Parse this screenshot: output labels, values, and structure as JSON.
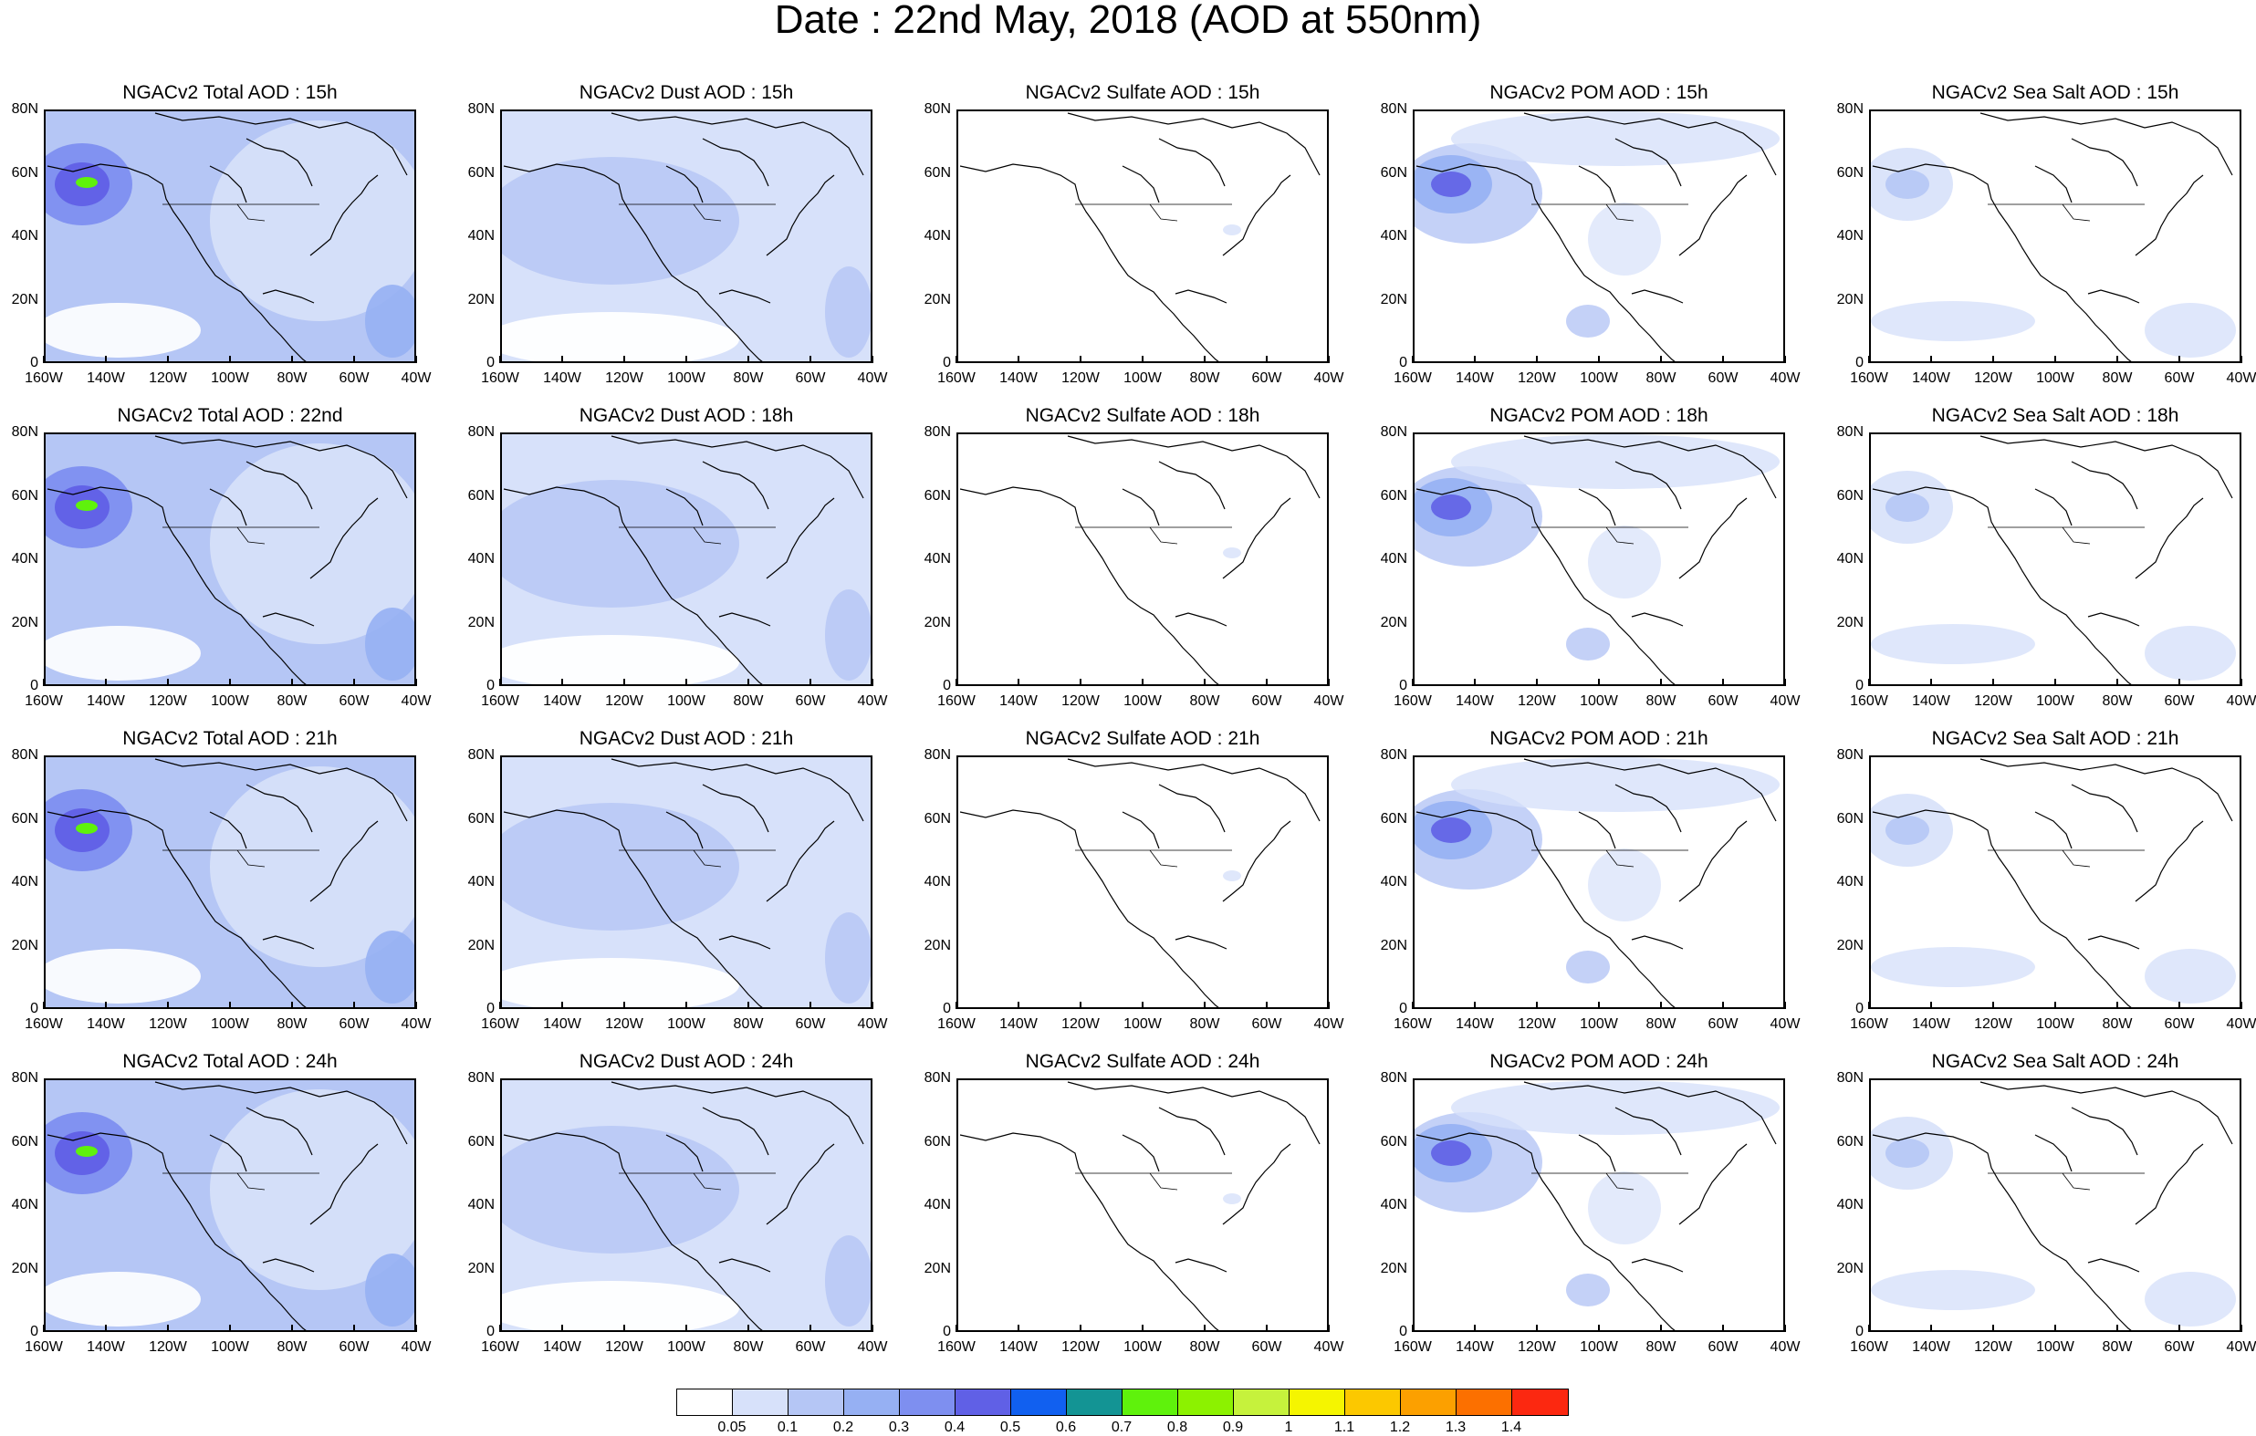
{
  "title": "Date : 22nd May, 2018 (AOD at 550nm)",
  "panel_titles": [
    [
      "NGACv2 Total AOD : 15h",
      "NGACv2 Dust AOD : 15h",
      "NGACv2 Sulfate AOD : 15h",
      "NGACv2 POM AOD : 15h",
      "NGACv2 Sea Salt AOD : 15h"
    ],
    [
      "NGACv2 Total AOD : 22nd",
      "NGACv2 Dust AOD : 18h",
      "NGACv2 Sulfate AOD : 18h",
      "NGACv2 POM AOD : 18h",
      "NGACv2 Sea Salt AOD : 18h"
    ],
    [
      "NGACv2 Total AOD : 21h",
      "NGACv2 Dust AOD : 21h",
      "NGACv2 Sulfate AOD : 21h",
      "NGACv2 POM AOD : 21h",
      "NGACv2 Sea Salt AOD : 21h"
    ],
    [
      "NGACv2 Total AOD : 24h",
      "NGACv2 Dust AOD : 24h",
      "NGACv2 Sulfate AOD : 24h",
      "NGACv2 POM AOD : 24h",
      "NGACv2 Sea Salt  AOD : 24h"
    ]
  ],
  "x_ticks": [
    "160W",
    "140W",
    "120W",
    "100W",
    "80W",
    "60W",
    "40W"
  ],
  "y_ticks": [
    "80N",
    "60N",
    "40N",
    "20N",
    "0"
  ],
  "colorbar": {
    "colors": [
      "#ffffff",
      "#d7e1fa",
      "#b5c6f5",
      "#96b0f3",
      "#7e8ff0",
      "#6060e6",
      "#1160f0",
      "#139494",
      "#5ff20c",
      "#8cf200",
      "#c6f23c",
      "#f5f500",
      "#fcc800",
      "#fca000",
      "#fc7000",
      "#fc2810"
    ],
    "labels": [
      "0.05",
      "0.1",
      "0.2",
      "0.3",
      "0.4",
      "0.5",
      "0.6",
      "0.7",
      "0.8",
      "0.9",
      "1",
      "1.1",
      "1.2",
      "1.3",
      "1.4"
    ]
  }
}
